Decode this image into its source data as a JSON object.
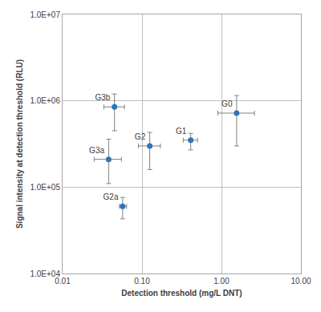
{
  "chart_data": {
    "type": "scatter",
    "x_label": "Detection threshold (mg/L DNT)",
    "y_label": "Signal intensity at detection threshold (RLU)",
    "log": true,
    "grid": true,
    "color": "#2e75b6",
    "marker": "circle",
    "data_labels": false,
    "labels": [
      "G3b",
      "G3a",
      "G2a",
      "G2",
      "G1",
      "G0"
    ],
    "x": [
      0.045,
      0.038,
      0.057,
      0.125,
      0.41,
      1.55
    ],
    "values": [
      850000,
      210000,
      60000,
      300000,
      350000,
      720000
    ],
    "x_error_minus": [
      0.012,
      0.013,
      0.005,
      0.035,
      0.08,
      0.65
    ],
    "x_error_plus": [
      0.015,
      0.017,
      0.007,
      0.045,
      0.09,
      1.05
    ],
    "y_error_minus": [
      400000,
      100000,
      17000,
      140000,
      80000,
      420000
    ],
    "y_error_plus": [
      350000,
      150000,
      16000,
      130000,
      70000,
      430000
    ],
    "xlim": [
      0.01,
      10
    ],
    "xticks": [
      0.01,
      {
        "value": 0.1,
        "label": "0.10"
      },
      {
        "value": 1,
        "label": "1.00"
      },
      {
        "value": 10,
        "label": "10.00"
      }
    ],
    "ylim": [
      10000,
      10000000
    ],
    "yticks": [
      {
        "value": 10000,
        "label": "1.0E+04"
      },
      {
        "value": 100000,
        "label": "1.0E+05"
      },
      {
        "value": 1000000,
        "label": "1.0E+06"
      },
      {
        "value": 10000000,
        "label": "1.0E+07"
      }
    ]
  }
}
